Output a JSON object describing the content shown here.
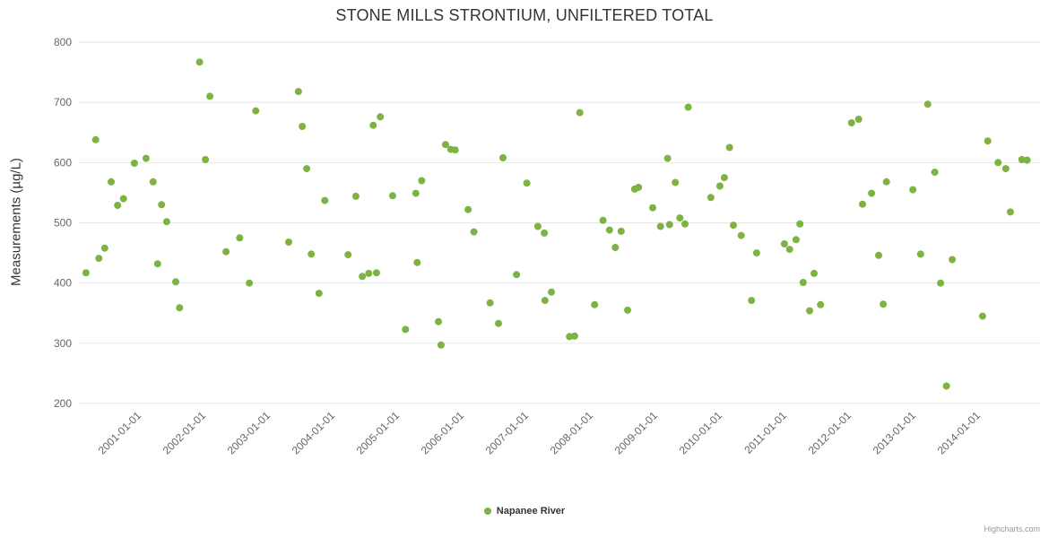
{
  "legend": {
    "series_label": "Napanee River"
  },
  "credits": {
    "label": "Highcharts.com"
  },
  "chart_data": {
    "type": "scatter",
    "title": "STONE MILLS STRONTIUM, UNFILTERED TOTAL",
    "xlabel": "",
    "ylabel": "Measurements (µg/L)",
    "ylim": [
      200,
      800
    ],
    "y_ticks": [
      200,
      300,
      400,
      500,
      600,
      700,
      800
    ],
    "xlim": [
      2000.07,
      2014.96
    ],
    "x_ticks": [
      {
        "value": 2001,
        "label": "2001-01-01"
      },
      {
        "value": 2002,
        "label": "2002-01-01"
      },
      {
        "value": 2003,
        "label": "2003-01-01"
      },
      {
        "value": 2004,
        "label": "2004-01-01"
      },
      {
        "value": 2005,
        "label": "2005-01-01"
      },
      {
        "value": 2006,
        "label": "2006-01-01"
      },
      {
        "value": 2007,
        "label": "2007-01-01"
      },
      {
        "value": 2008,
        "label": "2008-01-01"
      },
      {
        "value": 2009,
        "label": "2009-01-01"
      },
      {
        "value": 2010,
        "label": "2010-01-01"
      },
      {
        "value": 2011,
        "label": "2011-01-01"
      },
      {
        "value": 2012,
        "label": "2012-01-01"
      },
      {
        "value": 2013,
        "label": "2013-01-01"
      },
      {
        "value": 2014,
        "label": "2014-01-01"
      }
    ],
    "grid": "horizontal-only",
    "legend_position": "bottom-center",
    "colors": {
      "grid": "#e6e6e6",
      "axis_label": "#666666",
      "title": "#333333",
      "legend_text": "#333333",
      "credits": "#999999",
      "point": "#7cb342"
    },
    "series": [
      {
        "name": "Napanee River",
        "color": "#7cb342",
        "marker_radius": 4,
        "points": [
          [
            2000.18,
            417
          ],
          [
            2000.33,
            638
          ],
          [
            2000.38,
            441
          ],
          [
            2000.47,
            458
          ],
          [
            2000.57,
            568
          ],
          [
            2000.67,
            529
          ],
          [
            2000.76,
            540
          ],
          [
            2000.93,
            599
          ],
          [
            2001.11,
            607
          ],
          [
            2001.22,
            568
          ],
          [
            2001.29,
            432
          ],
          [
            2001.35,
            530
          ],
          [
            2001.43,
            502
          ],
          [
            2001.57,
            402
          ],
          [
            2001.63,
            359
          ],
          [
            2001.94,
            767
          ],
          [
            2002.03,
            605
          ],
          [
            2002.1,
            710
          ],
          [
            2002.35,
            452
          ],
          [
            2002.56,
            475
          ],
          [
            2002.71,
            400
          ],
          [
            2002.81,
            686
          ],
          [
            2003.32,
            468
          ],
          [
            2003.47,
            718
          ],
          [
            2003.53,
            660
          ],
          [
            2003.6,
            590
          ],
          [
            2003.67,
            448
          ],
          [
            2003.79,
            383
          ],
          [
            2003.88,
            537
          ],
          [
            2004.24,
            447
          ],
          [
            2004.36,
            544
          ],
          [
            2004.46,
            411
          ],
          [
            2004.56,
            416
          ],
          [
            2004.63,
            662
          ],
          [
            2004.68,
            417
          ],
          [
            2004.74,
            676
          ],
          [
            2004.93,
            545
          ],
          [
            2005.13,
            323
          ],
          [
            2005.29,
            549
          ],
          [
            2005.31,
            434
          ],
          [
            2005.38,
            570
          ],
          [
            2005.64,
            336
          ],
          [
            2005.68,
            297
          ],
          [
            2005.75,
            630
          ],
          [
            2005.83,
            622
          ],
          [
            2005.9,
            621
          ],
          [
            2006.1,
            522
          ],
          [
            2006.19,
            485
          ],
          [
            2006.44,
            367
          ],
          [
            2006.57,
            333
          ],
          [
            2006.64,
            608
          ],
          [
            2006.85,
            414
          ],
          [
            2007.01,
            566
          ],
          [
            2007.18,
            494
          ],
          [
            2007.28,
            483
          ],
          [
            2007.29,
            371
          ],
          [
            2007.39,
            385
          ],
          [
            2007.67,
            311
          ],
          [
            2007.75,
            312
          ],
          [
            2007.83,
            683
          ],
          [
            2008.06,
            364
          ],
          [
            2008.19,
            504
          ],
          [
            2008.29,
            488
          ],
          [
            2008.38,
            459
          ],
          [
            2008.47,
            486
          ],
          [
            2008.57,
            355
          ],
          [
            2008.68,
            556
          ],
          [
            2008.74,
            559
          ],
          [
            2008.96,
            525
          ],
          [
            2009.08,
            494
          ],
          [
            2009.19,
            607
          ],
          [
            2009.22,
            497
          ],
          [
            2009.31,
            567
          ],
          [
            2009.38,
            508
          ],
          [
            2009.46,
            498
          ],
          [
            2009.51,
            692
          ],
          [
            2009.86,
            542
          ],
          [
            2010.0,
            561
          ],
          [
            2010.07,
            575
          ],
          [
            2010.15,
            625
          ],
          [
            2010.21,
            496
          ],
          [
            2010.33,
            479
          ],
          [
            2010.49,
            371
          ],
          [
            2010.57,
            450
          ],
          [
            2011.0,
            465
          ],
          [
            2011.08,
            456
          ],
          [
            2011.18,
            472
          ],
          [
            2011.24,
            498
          ],
          [
            2011.29,
            401
          ],
          [
            2011.39,
            354
          ],
          [
            2011.46,
            416
          ],
          [
            2011.56,
            364
          ],
          [
            2012.04,
            666
          ],
          [
            2012.15,
            672
          ],
          [
            2012.21,
            531
          ],
          [
            2012.35,
            549
          ],
          [
            2012.46,
            446
          ],
          [
            2012.53,
            365
          ],
          [
            2012.58,
            568
          ],
          [
            2012.99,
            555
          ],
          [
            2013.11,
            448
          ],
          [
            2013.22,
            697
          ],
          [
            2013.33,
            584
          ],
          [
            2013.42,
            400
          ],
          [
            2013.51,
            229
          ],
          [
            2013.6,
            439
          ],
          [
            2014.07,
            345
          ],
          [
            2014.15,
            636
          ],
          [
            2014.31,
            600
          ],
          [
            2014.43,
            590
          ],
          [
            2014.5,
            518
          ],
          [
            2014.68,
            605
          ],
          [
            2014.76,
            604
          ]
        ]
      }
    ]
  }
}
